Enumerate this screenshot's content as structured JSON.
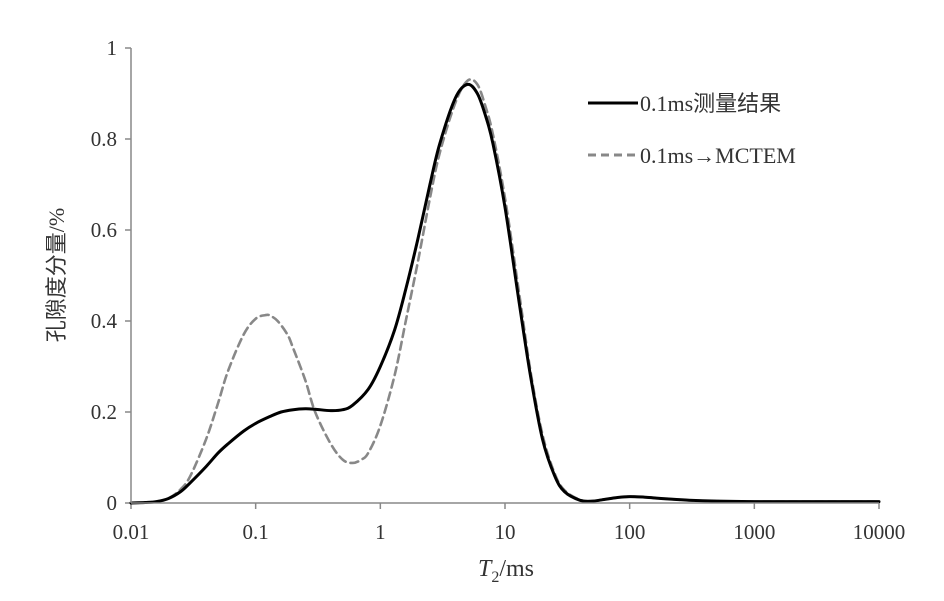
{
  "chart_data": {
    "type": "line",
    "title": "",
    "xlabel_main": "T",
    "xlabel_sub": "2",
    "xlabel_unit": "/ms",
    "ylabel": "孔隙度分量/%",
    "xscale": "log",
    "xlim": [
      0.01,
      10000
    ],
    "ylim": [
      0,
      1
    ],
    "xticks": [
      0.01,
      0.1,
      1,
      10,
      100,
      1000,
      10000
    ],
    "xtick_labels": [
      "0.01",
      "0.1",
      "1",
      "10",
      "100",
      "1000",
      "10000"
    ],
    "yticks": [
      0,
      0.2,
      0.4,
      0.6,
      0.8,
      1
    ],
    "ytick_labels": [
      "0",
      "0.2",
      "0.4",
      "0.6",
      "0.8",
      "1"
    ],
    "grid": false,
    "legend_position": "top-right",
    "series": [
      {
        "name": "0.1ms测量结果",
        "color": "#000000",
        "dash": "solid",
        "x": [
          0.01,
          0.013,
          0.016,
          0.02,
          0.025,
          0.03,
          0.04,
          0.05,
          0.06,
          0.08,
          0.1,
          0.13,
          0.16,
          0.2,
          0.25,
          0.3,
          0.4,
          0.5,
          0.6,
          0.8,
          1.0,
          1.3,
          1.6,
          2.0,
          2.5,
          3.0,
          4.0,
          5.0,
          6.0,
          7.0,
          8.0,
          10.0,
          13.0,
          16.0,
          20.0,
          25.0,
          30.0,
          40.0,
          50.0,
          60.0,
          80.0,
          100.0,
          130.0,
          160.0,
          200.0,
          300.0,
          500.0,
          1000.0,
          2000.0,
          5000.0,
          10000.0
        ],
        "y": [
          0.0,
          0.001,
          0.003,
          0.01,
          0.025,
          0.045,
          0.08,
          0.11,
          0.13,
          0.158,
          0.175,
          0.19,
          0.2,
          0.205,
          0.207,
          0.206,
          0.203,
          0.205,
          0.215,
          0.25,
          0.3,
          0.38,
          0.47,
          0.58,
          0.7,
          0.79,
          0.89,
          0.92,
          0.9,
          0.85,
          0.79,
          0.65,
          0.44,
          0.28,
          0.14,
          0.06,
          0.025,
          0.006,
          0.004,
          0.007,
          0.012,
          0.014,
          0.013,
          0.011,
          0.009,
          0.006,
          0.004,
          0.003,
          0.003,
          0.003,
          0.003
        ]
      },
      {
        "name": "0.1ms→MCTEM",
        "color": "#888888",
        "dash": "dashed",
        "x": [
          0.01,
          0.013,
          0.016,
          0.02,
          0.025,
          0.03,
          0.04,
          0.05,
          0.06,
          0.08,
          0.1,
          0.12,
          0.13,
          0.15,
          0.18,
          0.2,
          0.25,
          0.3,
          0.4,
          0.5,
          0.6,
          0.7,
          0.8,
          1.0,
          1.3,
          1.6,
          2.0,
          2.5,
          3.0,
          4.0,
          5.0,
          6.0,
          7.0,
          8.0,
          10.0,
          13.0,
          16.0,
          20.0,
          25.0,
          30.0,
          40.0,
          50.0,
          60.0,
          80.0,
          100.0,
          130.0,
          160.0,
          200.0,
          300.0,
          500.0,
          1000.0,
          2000.0,
          5000.0,
          10000.0
        ],
        "y": [
          0.0,
          0.001,
          0.003,
          0.01,
          0.03,
          0.06,
          0.14,
          0.22,
          0.29,
          0.37,
          0.405,
          0.413,
          0.412,
          0.4,
          0.37,
          0.34,
          0.27,
          0.2,
          0.13,
          0.095,
          0.088,
          0.095,
          0.11,
          0.17,
          0.28,
          0.4,
          0.53,
          0.67,
          0.77,
          0.88,
          0.928,
          0.92,
          0.87,
          0.81,
          0.67,
          0.46,
          0.29,
          0.15,
          0.065,
          0.028,
          0.007,
          0.004,
          0.007,
          0.012,
          0.014,
          0.013,
          0.011,
          0.009,
          0.006,
          0.004,
          0.003,
          0.003,
          0.003,
          0.003
        ]
      }
    ]
  }
}
